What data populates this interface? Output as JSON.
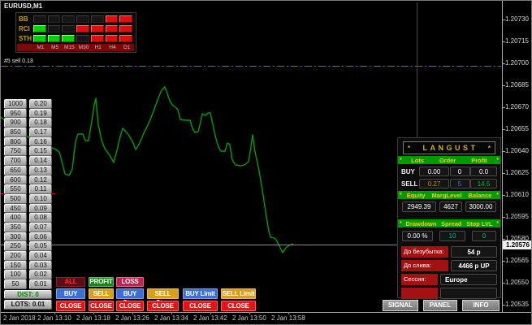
{
  "window": {
    "title": "EURUSD,M1"
  },
  "colors": {
    "background": "#000000",
    "chart_line": "#00a000",
    "level_line_green": "#00b400",
    "level_line_red": "#e01010",
    "current_price_line": "#8a8a8a",
    "panel_header_green": "#009b00",
    "panel_gold": "#d8b211",
    "buy_blue": "#3a6fd8",
    "sell_yellow": "#d8a018",
    "close_red": "#e81212",
    "loss_crimson": "#c72050",
    "label_red": "#a31212"
  },
  "indicator_panel": {
    "rows": [
      {
        "label": "BB",
        "cells": [
          "black",
          "black",
          "black",
          "black",
          "black",
          "red",
          "red"
        ]
      },
      {
        "label": "RCI",
        "cells": [
          "green",
          "black",
          "black",
          "red",
          "red",
          "red",
          "red"
        ]
      },
      {
        "label": "STH",
        "cells": [
          "green",
          "green",
          "green",
          "black",
          "red",
          "red",
          "red"
        ]
      }
    ],
    "timeframes": [
      "M1",
      "M5",
      "M15",
      "M30",
      "H1",
      "H4",
      "D1"
    ]
  },
  "order_label": "#5 sell 0.13",
  "ladder": {
    "rows": [
      {
        "dist": "1000",
        "lot": "0.20"
      },
      {
        "dist": "950",
        "lot": "0.19"
      },
      {
        "dist": "900",
        "lot": "0.18"
      },
      {
        "dist": "850",
        "lot": "0.17"
      },
      {
        "dist": "800",
        "lot": "0.16"
      },
      {
        "dist": "750",
        "lot": "0.15"
      },
      {
        "dist": "700",
        "lot": "0.14"
      },
      {
        "dist": "650",
        "lot": "0.13"
      },
      {
        "dist": "600",
        "lot": "0.12"
      },
      {
        "dist": "550",
        "lot": "0.11"
      },
      {
        "dist": "500",
        "lot": "0.10"
      },
      {
        "dist": "450",
        "lot": "0.09"
      },
      {
        "dist": "400",
        "lot": "0.08"
      },
      {
        "dist": "350",
        "lot": "0.07"
      },
      {
        "dist": "300",
        "lot": "0.06"
      },
      {
        "dist": "250",
        "lot": "0.05"
      },
      {
        "dist": "200",
        "lot": "0.04"
      },
      {
        "dist": "150",
        "lot": "0.03"
      },
      {
        "dist": "100",
        "lot": "0.02"
      },
      {
        "dist": "50",
        "lot": "0.01"
      }
    ],
    "dist_label": "DIST: 0",
    "lots_label": "LOTS: 0.01"
  },
  "trade_buttons": {
    "all": "ALL",
    "profit": "PROFIT",
    "loss": "LOSS",
    "buy": "BUY",
    "sell": "SELL",
    "buy_stop": "BUY Stop",
    "sell_stop": "SELL Stop",
    "buy_limit": "BUY Limit",
    "sell_limit": "SELL Limit",
    "close": "CLOSE"
  },
  "panel": {
    "star": "*",
    "title": "LANGUST",
    "header1": [
      "Lots",
      "Order",
      "Profit"
    ],
    "buy_label": "BUY",
    "buy_values": [
      "0.00",
      "0",
      "0.0"
    ],
    "sell_label": "SELL",
    "sell_values": [
      "0.27",
      "5",
      "14.5"
    ],
    "header2": [
      "Equity",
      "MargLevel",
      "Balance"
    ],
    "stats1": [
      "2949.39",
      "4627",
      "3000.00"
    ],
    "header3": [
      "Drawdown",
      "Spread",
      "Stop LVL"
    ],
    "stats2": [
      "0.00 %",
      "10",
      "0"
    ],
    "info_rows": [
      {
        "label": "До безубытка:",
        "value": "54 p",
        "wide": false
      },
      {
        "label": "До слива:",
        "value": "4466 p UP",
        "wide": false
      },
      {
        "label": "Сессия:",
        "value": "Europe",
        "wide": true
      },
      {
        "label": "",
        "value": "",
        "wide": true
      }
    ]
  },
  "footer_buttons": [
    "SIGNAL",
    "PANEL",
    "INFO"
  ],
  "price_axis": {
    "labels": [
      "1.20730",
      "1.20715",
      "1.20700",
      "1.20685",
      "1.20670",
      "1.20655",
      "1.20640",
      "1.20625",
      "1.20610",
      "1.20595",
      "1.20580",
      "1.20565",
      "1.20550",
      "1.20535"
    ],
    "current": "1.20576"
  },
  "time_axis": {
    "labels": [
      "2 Jan 2018",
      "2 Jan 13:10",
      "2 Jan 13:18",
      "2 Jan 13:26",
      "2 Jan 13:34",
      "2 Jan 13:42",
      "2 Jan 13:50",
      "2 Jan 13:58"
    ]
  },
  "chart_data": {
    "type": "line",
    "symbol": "EURUSD",
    "timeframe": "M1",
    "visible_price_range": [
      "1.20535",
      "1.20730"
    ],
    "current_price": "1.20576",
    "green_level_price": "1.20700",
    "line_points_px": "0,143 10,151 22,160 34,168 46,174 58,179 66,182 72,186 76,201 79,213 84,215 88,207 92,173 95,164 101,164 104,172 108,172 112,148 115,128 117,120 120,152 124,171 128,182 134,190 139,199 143,184 147,167 150,157 154,161 158,166 163,175 166,183 170,177 176,163 182,151 188,136 193,122 198,110 202,106 205,114 208,123 211,128 215,131 218,134 221,146 227,147 233,147 236,157 239,162 243,161 246,149 248,139 252,141 255,138 258,138 261,152 264,166 268,180 271,185 276,185 279,175 282,177 285,196 289,202 295,203 300,202 305,198 308,180 310,165 313,186 317,204 320,221 323,239 325,253 328,272 330,283 332,291 337,292 339,294 342,300 345,306 347,310 351,304 355,301 360,299"
  }
}
